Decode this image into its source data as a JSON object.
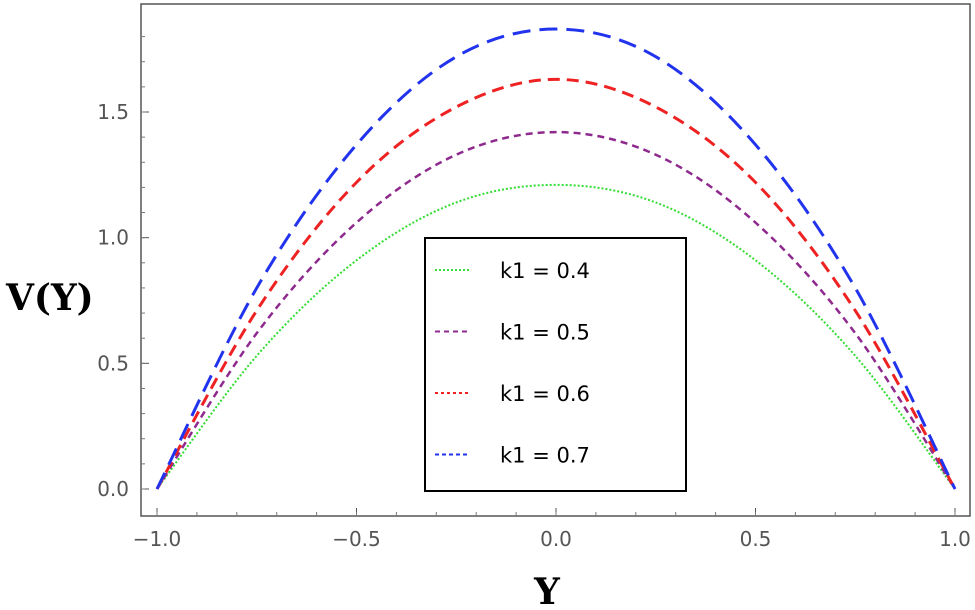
{
  "chart_data": {
    "type": "line",
    "xlabel": "Y",
    "ylabel": "V(Y)",
    "xlim": [
      -1.0,
      1.0
    ],
    "ylim": [
      -0.1,
      1.93
    ],
    "x_ticks": [
      -1.0,
      -0.5,
      0.0,
      0.5,
      1.0
    ],
    "x_tick_labels": [
      "−1.0",
      "−0.5",
      "0.0",
      "0.5",
      "1.0"
    ],
    "y_ticks": [
      0.0,
      0.5,
      1.0,
      1.5
    ],
    "y_tick_labels": [
      "0.0",
      "0.5",
      "1.0",
      "1.5"
    ],
    "grid": false,
    "legend_position": "center-bottom",
    "series": [
      {
        "name": "k1 = 0.4",
        "color": "#33dd33",
        "style": "dotted",
        "x": [
          -1.0,
          -0.75,
          -0.5,
          -0.25,
          0.0,
          0.25,
          0.5,
          0.75,
          1.0
        ],
        "values": [
          0.0,
          0.53,
          0.91,
          1.14,
          1.21,
          1.14,
          0.91,
          0.53,
          0.0
        ]
      },
      {
        "name": "k1 = 0.5",
        "color": "#8e2a8e",
        "style": "short-dash",
        "x": [
          -1.0,
          -0.75,
          -0.5,
          -0.25,
          0.0,
          0.25,
          0.5,
          0.75,
          1.0
        ],
        "values": [
          0.0,
          0.62,
          1.06,
          1.33,
          1.42,
          1.33,
          1.06,
          0.62,
          0.0
        ]
      },
      {
        "name": "k1 = 0.6",
        "color": "#ee2222",
        "style": "dash",
        "x": [
          -1.0,
          -0.75,
          -0.5,
          -0.25,
          0.0,
          0.25,
          0.5,
          0.75,
          1.0
        ],
        "values": [
          0.0,
          0.71,
          1.22,
          1.52,
          1.63,
          1.52,
          1.22,
          0.71,
          0.0
        ]
      },
      {
        "name": "k1 = 0.7",
        "color": "#2233ee",
        "style": "long-dash",
        "x": [
          -1.0,
          -0.75,
          -0.5,
          -0.25,
          0.0,
          0.25,
          0.5,
          0.75,
          1.0
        ],
        "values": [
          0.0,
          0.8,
          1.37,
          1.72,
          1.83,
          1.72,
          1.37,
          0.8,
          0.0
        ]
      }
    ]
  }
}
